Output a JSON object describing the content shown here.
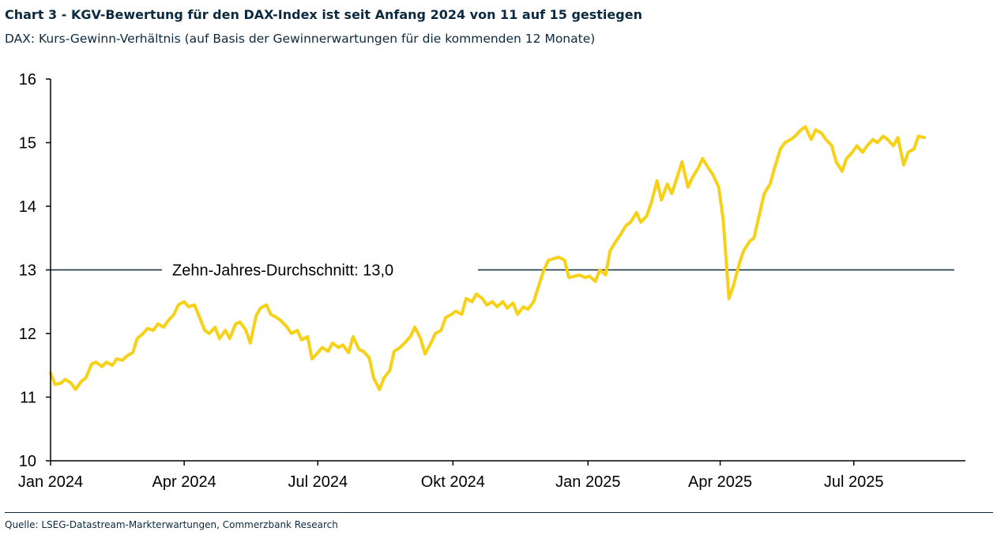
{
  "title": "Chart 3 - KGV-Bewertung für den DAX-Index ist seit Anfang 2024 von 11 auf 15 gestiegen",
  "subtitle": "DAX: Kurs-Gewinn-Verhältnis (auf Basis der Gewinnerwartungen für die kommenden 12 Monate)",
  "source": "Quelle: LSEG-Datastream-Markterwartungen, Commerzbank Research",
  "colors": {
    "series": "#f7d117",
    "reference_line": "#0b2a3f",
    "text": "#0b2a3f"
  },
  "chart_data": {
    "type": "line",
    "ylim": [
      10,
      16
    ],
    "yticks": [
      "10",
      "11",
      "12",
      "13",
      "14",
      "15",
      "16"
    ],
    "xticks": [
      {
        "label": "Jan 2024",
        "date": "2024-01-01"
      },
      {
        "label": "Apr 2024",
        "date": "2024-04-01"
      },
      {
        "label": "Jul 2024",
        "date": "2024-07-01"
      },
      {
        "label": "Okt 2024",
        "date": "2024-10-01"
      },
      {
        "label": "Jan 2025",
        "date": "2025-01-01"
      },
      {
        "label": "Apr 2025",
        "date": "2025-04-01"
      },
      {
        "label": "Jul 2025",
        "date": "2025-07-01"
      }
    ],
    "xlim": [
      "2024-01-01",
      "2025-09-15"
    ],
    "reference_line": {
      "value": 13.0,
      "label": "Zehn-Jahres-Durchschnitt: 13,0"
    },
    "grid": false,
    "series": [
      {
        "points": [
          [
            "2024-01-01",
            11.38
          ],
          [
            "2024-01-04",
            11.2
          ],
          [
            "2024-01-08",
            11.22
          ],
          [
            "2024-01-11",
            11.28
          ],
          [
            "2024-01-15",
            11.22
          ],
          [
            "2024-01-18",
            11.12
          ],
          [
            "2024-01-22",
            11.25
          ],
          [
            "2024-01-25",
            11.3
          ],
          [
            "2024-01-29",
            11.52
          ],
          [
            "2024-02-01",
            11.55
          ],
          [
            "2024-02-05",
            11.48
          ],
          [
            "2024-02-08",
            11.55
          ],
          [
            "2024-02-12",
            11.5
          ],
          [
            "2024-02-15",
            11.6
          ],
          [
            "2024-02-19",
            11.58
          ],
          [
            "2024-02-22",
            11.65
          ],
          [
            "2024-02-26",
            11.7
          ],
          [
            "2024-02-29",
            11.92
          ],
          [
            "2024-03-04",
            12.0
          ],
          [
            "2024-03-07",
            12.08
          ],
          [
            "2024-03-11",
            12.05
          ],
          [
            "2024-03-14",
            12.15
          ],
          [
            "2024-03-18",
            12.1
          ],
          [
            "2024-03-21",
            12.2
          ],
          [
            "2024-03-25",
            12.3
          ],
          [
            "2024-03-28",
            12.45
          ],
          [
            "2024-04-01",
            12.5
          ],
          [
            "2024-04-04",
            12.42
          ],
          [
            "2024-04-08",
            12.45
          ],
          [
            "2024-04-11",
            12.28
          ],
          [
            "2024-04-15",
            12.05
          ],
          [
            "2024-04-18",
            12.0
          ],
          [
            "2024-04-22",
            12.1
          ],
          [
            "2024-04-25",
            11.92
          ],
          [
            "2024-04-29",
            12.05
          ],
          [
            "2024-05-02",
            11.92
          ],
          [
            "2024-05-06",
            12.15
          ],
          [
            "2024-05-09",
            12.18
          ],
          [
            "2024-05-13",
            12.05
          ],
          [
            "2024-05-16",
            11.85
          ],
          [
            "2024-05-20",
            12.28
          ],
          [
            "2024-05-23",
            12.4
          ],
          [
            "2024-05-27",
            12.45
          ],
          [
            "2024-05-30",
            12.3
          ],
          [
            "2024-06-03",
            12.25
          ],
          [
            "2024-06-06",
            12.2
          ],
          [
            "2024-06-10",
            12.1
          ],
          [
            "2024-06-13",
            12.0
          ],
          [
            "2024-06-17",
            12.05
          ],
          [
            "2024-06-20",
            11.9
          ],
          [
            "2024-06-24",
            11.95
          ],
          [
            "2024-06-27",
            11.6
          ],
          [
            "2024-07-01",
            11.7
          ],
          [
            "2024-07-04",
            11.78
          ],
          [
            "2024-07-08",
            11.72
          ],
          [
            "2024-07-11",
            11.85
          ],
          [
            "2024-07-15",
            11.78
          ],
          [
            "2024-07-18",
            11.82
          ],
          [
            "2024-07-22",
            11.7
          ],
          [
            "2024-07-25",
            11.95
          ],
          [
            "2024-07-29",
            11.75
          ],
          [
            "2024-08-01",
            11.72
          ],
          [
            "2024-08-05",
            11.62
          ],
          [
            "2024-08-08",
            11.3
          ],
          [
            "2024-08-12",
            11.12
          ],
          [
            "2024-08-15",
            11.3
          ],
          [
            "2024-08-19",
            11.42
          ],
          [
            "2024-08-22",
            11.72
          ],
          [
            "2024-08-26",
            11.78
          ],
          [
            "2024-08-29",
            11.85
          ],
          [
            "2024-09-02",
            11.95
          ],
          [
            "2024-09-05",
            12.1
          ],
          [
            "2024-09-09",
            11.92
          ],
          [
            "2024-09-12",
            11.68
          ],
          [
            "2024-09-16",
            11.85
          ],
          [
            "2024-09-19",
            12.0
          ],
          [
            "2024-09-23",
            12.05
          ],
          [
            "2024-09-26",
            12.25
          ],
          [
            "2024-09-30",
            12.3
          ],
          [
            "2024-10-03",
            12.35
          ],
          [
            "2024-10-07",
            12.3
          ],
          [
            "2024-10-10",
            12.55
          ],
          [
            "2024-10-14",
            12.5
          ],
          [
            "2024-10-17",
            12.62
          ],
          [
            "2024-10-21",
            12.55
          ],
          [
            "2024-10-24",
            12.45
          ],
          [
            "2024-10-28",
            12.5
          ],
          [
            "2024-10-31",
            12.42
          ],
          [
            "2024-11-04",
            12.5
          ],
          [
            "2024-11-07",
            12.4
          ],
          [
            "2024-11-11",
            12.48
          ],
          [
            "2024-11-14",
            12.3
          ],
          [
            "2024-11-18",
            12.42
          ],
          [
            "2024-11-21",
            12.38
          ],
          [
            "2024-11-25",
            12.5
          ],
          [
            "2024-11-28",
            12.72
          ],
          [
            "2024-12-02",
            13.0
          ],
          [
            "2024-12-05",
            13.15
          ],
          [
            "2024-12-09",
            13.18
          ],
          [
            "2024-12-12",
            13.2
          ],
          [
            "2024-12-16",
            13.15
          ],
          [
            "2024-12-19",
            12.88
          ],
          [
            "2024-12-23",
            12.9
          ],
          [
            "2024-12-26",
            12.92
          ],
          [
            "2024-12-30",
            12.88
          ],
          [
            "2025-01-02",
            12.9
          ],
          [
            "2025-01-06",
            12.82
          ],
          [
            "2025-01-09",
            13.0
          ],
          [
            "2025-01-13",
            12.92
          ],
          [
            "2025-01-16",
            13.3
          ],
          [
            "2025-01-20",
            13.45
          ],
          [
            "2025-01-23",
            13.55
          ],
          [
            "2025-01-27",
            13.7
          ],
          [
            "2025-01-30",
            13.75
          ],
          [
            "2025-02-03",
            13.9
          ],
          [
            "2025-02-06",
            13.75
          ],
          [
            "2025-02-10",
            13.85
          ],
          [
            "2025-02-13",
            14.05
          ],
          [
            "2025-02-17",
            14.4
          ],
          [
            "2025-02-20",
            14.1
          ],
          [
            "2025-02-24",
            14.35
          ],
          [
            "2025-02-27",
            14.2
          ],
          [
            "2025-03-03",
            14.48
          ],
          [
            "2025-03-06",
            14.7
          ],
          [
            "2025-03-10",
            14.3
          ],
          [
            "2025-03-13",
            14.45
          ],
          [
            "2025-03-17",
            14.6
          ],
          [
            "2025-03-20",
            14.75
          ],
          [
            "2025-03-24",
            14.6
          ],
          [
            "2025-03-27",
            14.5
          ],
          [
            "2025-03-31",
            14.3
          ],
          [
            "2025-04-03",
            13.8
          ],
          [
            "2025-04-07",
            12.55
          ],
          [
            "2025-04-10",
            12.75
          ],
          [
            "2025-04-14",
            13.1
          ],
          [
            "2025-04-17",
            13.3
          ],
          [
            "2025-04-21",
            13.45
          ],
          [
            "2025-04-24",
            13.5
          ],
          [
            "2025-04-28",
            13.9
          ],
          [
            "2025-05-01",
            14.2
          ],
          [
            "2025-05-05",
            14.35
          ],
          [
            "2025-05-08",
            14.6
          ],
          [
            "2025-05-12",
            14.9
          ],
          [
            "2025-05-15",
            15.0
          ],
          [
            "2025-05-19",
            15.05
          ],
          [
            "2025-05-22",
            15.1
          ],
          [
            "2025-05-26",
            15.2
          ],
          [
            "2025-05-29",
            15.25
          ],
          [
            "2025-06-02",
            15.05
          ],
          [
            "2025-06-05",
            15.2
          ],
          [
            "2025-06-09",
            15.15
          ],
          [
            "2025-06-12",
            15.05
          ],
          [
            "2025-06-16",
            14.95
          ],
          [
            "2025-06-19",
            14.7
          ],
          [
            "2025-06-23",
            14.55
          ],
          [
            "2025-06-26",
            14.75
          ],
          [
            "2025-06-30",
            14.85
          ],
          [
            "2025-07-03",
            14.95
          ],
          [
            "2025-07-07",
            14.85
          ],
          [
            "2025-07-10",
            14.95
          ],
          [
            "2025-07-14",
            15.05
          ],
          [
            "2025-07-17",
            15.0
          ],
          [
            "2025-07-21",
            15.1
          ],
          [
            "2025-07-24",
            15.05
          ],
          [
            "2025-07-28",
            14.95
          ],
          [
            "2025-07-31",
            15.08
          ],
          [
            "2025-08-04",
            14.65
          ],
          [
            "2025-08-07",
            14.85
          ],
          [
            "2025-08-11",
            14.9
          ],
          [
            "2025-08-14",
            15.1
          ],
          [
            "2025-08-18",
            15.08
          ]
        ]
      }
    ]
  }
}
